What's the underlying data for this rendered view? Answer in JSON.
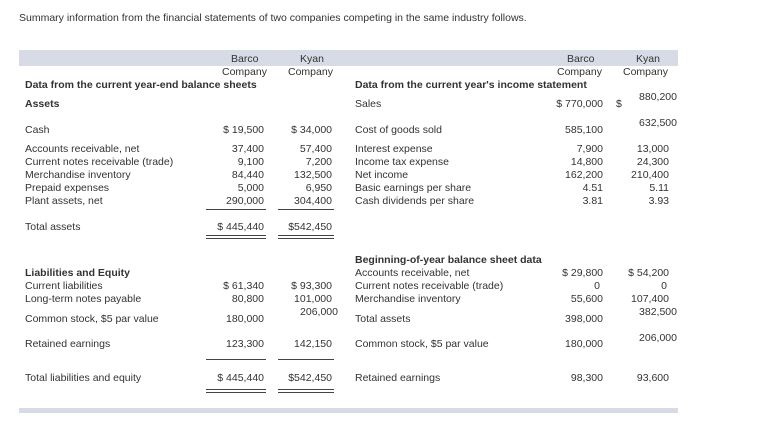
{
  "intro": "Summary information from the financial statements of two companies competing in the same industry follows.",
  "left": {
    "col_barco": [
      "Barco",
      "Company"
    ],
    "col_kyan": [
      "Kyan",
      "Company"
    ],
    "title": "Data from the current year-end balance sheets",
    "assets_heading": "Assets",
    "cash": {
      "label": "Cash",
      "barco": "$ 19,500",
      "kyan": "$ 34,000"
    },
    "ar": {
      "label": "Accounts receivable, net",
      "barco": "37,400",
      "kyan": "57,400"
    },
    "notes": {
      "label": "Current notes receivable (trade)",
      "barco": "9,100",
      "kyan": "7,200"
    },
    "inv": {
      "label": "Merchandise inventory",
      "barco": "84,440",
      "kyan": "132,500"
    },
    "prepaid": {
      "label": "Prepaid expenses",
      "barco": "5,000",
      "kyan": "6,950"
    },
    "plant": {
      "label": "Plant assets, net",
      "barco": "290,000",
      "kyan": "304,400"
    },
    "total_assets": {
      "label": "Total assets",
      "barco": "$ 445,440",
      "kyan": "$542,450"
    },
    "liab_heading": "Liabilities and Equity",
    "cur_liab": {
      "label": "Current liabilities",
      "barco": "$ 61,340",
      "kyan": "$ 93,300"
    },
    "lt_notes": {
      "label": "Long-term notes payable",
      "barco": "80,800",
      "kyan": "101,000"
    },
    "common": {
      "label": "Common stock, $5 par value",
      "barco": "180,000",
      "kyan": "206,000"
    },
    "retained": {
      "label": "Retained earnings",
      "barco": "123,300",
      "kyan": "142,150"
    },
    "total_le": {
      "label": "Total liabilities and equity",
      "barco": "$ 445,440",
      "kyan": "$542,450"
    }
  },
  "right": {
    "col_barco": [
      "Barco",
      "Company"
    ],
    "col_kyan": [
      "Kyan",
      "Company"
    ],
    "title": "Data from the current year's income statement",
    "sales": {
      "label": "Sales",
      "barco": "$ 770,000",
      "kyan_sign": "$",
      "kyan": "880,200"
    },
    "cogs": {
      "label": "Cost of goods sold",
      "barco": "585,100",
      "kyan": "632,500"
    },
    "interest": {
      "label": "Interest expense",
      "barco": "7,900",
      "kyan": "13,000"
    },
    "tax": {
      "label": "Income tax expense",
      "barco": "14,800",
      "kyan": "24,300"
    },
    "net": {
      "label": "Net income",
      "barco": "162,200",
      "kyan": "210,400"
    },
    "eps": {
      "label": "Basic earnings per share",
      "barco": "4.51",
      "kyan": "5.11"
    },
    "div": {
      "label": "Cash dividends per share",
      "barco": "3.81",
      "kyan": "3.93"
    },
    "beg_title": "Beginning-of-year balance sheet data",
    "beg_ar": {
      "label": "Accounts receivable, net",
      "barco": "$ 29,800",
      "kyan": "$ 54,200"
    },
    "beg_notes": {
      "label": "Current notes receivable (trade)",
      "barco": "0",
      "kyan": "0"
    },
    "beg_inv": {
      "label": "Merchandise inventory",
      "barco": "55,600",
      "kyan": "107,400"
    },
    "beg_total": {
      "label": "Total assets",
      "barco": "398,000",
      "kyan": "382,500"
    },
    "beg_common": {
      "label": "Common stock, $5 par value",
      "barco": "180,000",
      "kyan": "206,000"
    },
    "beg_retained": {
      "label": "Retained earnings",
      "barco": "98,300",
      "kyan": "93,600"
    }
  }
}
